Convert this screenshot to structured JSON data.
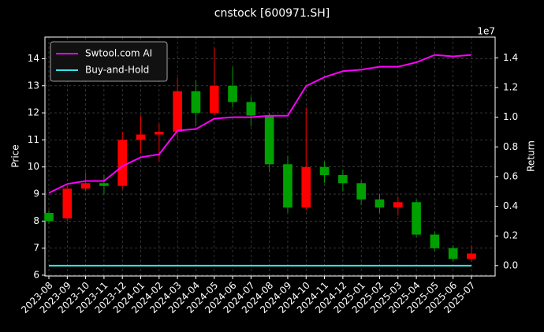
{
  "chart_data": {
    "type": "candlestick",
    "title": "cnstock [600971.SH]",
    "ylabel": "Price",
    "y2label": "Return",
    "y2_offset_label": "1e7",
    "x": [
      "2023-08",
      "2023-09",
      "2023-10",
      "2023-11",
      "2023-12",
      "2024-01",
      "2024-02",
      "2024-03",
      "2024-04",
      "2024-05",
      "2024-06",
      "2024-07",
      "2024-08",
      "2024-09",
      "2024-10",
      "2024-11",
      "2024-12",
      "2025-01",
      "2025-02",
      "2025-03",
      "2025-04",
      "2025-05",
      "2025-06",
      "2025-07"
    ],
    "open": [
      8.3,
      8.1,
      9.2,
      9.4,
      9.3,
      11.0,
      11.2,
      11.3,
      12.8,
      12.0,
      13.0,
      12.4,
      11.9,
      10.1,
      8.5,
      10.0,
      9.7,
      9.4,
      8.8,
      8.5,
      8.7,
      7.5,
      7.0,
      6.6
    ],
    "high": [
      8.4,
      9.3,
      9.8,
      9.7,
      11.3,
      11.9,
      11.6,
      13.3,
      13.2,
      14.4,
      13.7,
      12.6,
      12.0,
      10.4,
      12.2,
      10.2,
      9.9,
      9.5,
      9.0,
      8.9,
      8.8,
      7.6,
      7.1,
      7.1
    ],
    "low": [
      7.9,
      8.0,
      9.1,
      9.0,
      9.2,
      10.5,
      10.2,
      11.0,
      11.5,
      11.9,
      12.2,
      11.5,
      9.8,
      8.3,
      8.4,
      9.4,
      9.1,
      8.6,
      8.3,
      8.2,
      7.4,
      6.9,
      6.5,
      6.5
    ],
    "close": [
      8.0,
      9.2,
      9.4,
      9.3,
      11.0,
      11.2,
      11.3,
      12.8,
      12.0,
      13.0,
      12.4,
      11.9,
      10.1,
      8.5,
      10.0,
      9.7,
      9.4,
      8.8,
      8.5,
      8.7,
      7.5,
      7.0,
      6.6,
      6.8
    ],
    "up_color": "#ff0000",
    "down_color": "#00a000",
    "series": [
      {
        "name": "Swtool.com AI",
        "color": "#ff00ff",
        "axis": "y2",
        "values": [
          0.49,
          0.55,
          0.57,
          0.57,
          0.67,
          0.73,
          0.75,
          0.91,
          0.92,
          0.99,
          1.0,
          1.0,
          1.01,
          1.01,
          1.21,
          1.27,
          1.31,
          1.32,
          1.34,
          1.34,
          1.37,
          1.42,
          1.41,
          1.42
        ]
      },
      {
        "name": "Buy-and-Hold",
        "color": "#33e6e6",
        "axis": "y2",
        "values": [
          0,
          0,
          0,
          0,
          0,
          0,
          0,
          0,
          0,
          0,
          0,
          0,
          0,
          0,
          0,
          0,
          0,
          0,
          0,
          0,
          0,
          0,
          0,
          0
        ]
      }
    ],
    "ylim": [
      5.97,
      14.8
    ],
    "yticks": [
      6,
      7,
      8,
      9,
      10,
      11,
      12,
      13,
      14
    ],
    "y2lim": [
      -0.07,
      1.54
    ],
    "y2ticks": [
      {
        "value": 0,
        "label": "0.0"
      },
      0.2,
      0.4,
      0.6,
      0.8,
      {
        "value": 1,
        "label": "1.0"
      },
      1.2,
      1.4
    ],
    "grid": true,
    "legend": "upper left"
  }
}
